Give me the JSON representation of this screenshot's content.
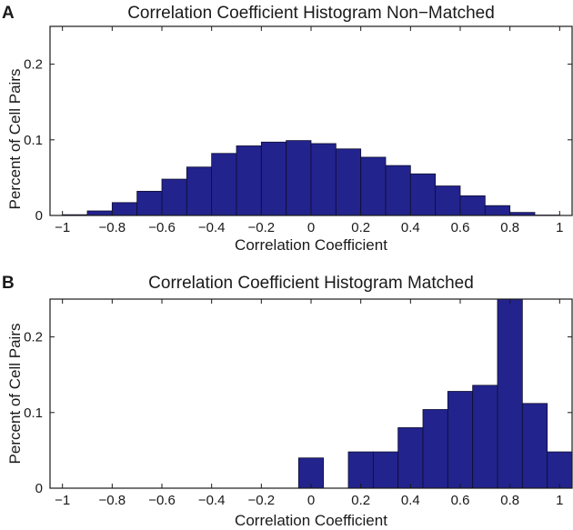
{
  "chart_data": [
    {
      "panel_label": "A",
      "type": "bar",
      "title": "Correlation Coefficient Histogram Non−Matched",
      "xlabel": "Correlation Coefficient",
      "ylabel": "Percent of Cell Pairs",
      "xlim": [
        -1.05,
        1.05
      ],
      "ylim": [
        0,
        0.25
      ],
      "xticks": [
        -1,
        -0.8,
        -0.6,
        -0.4,
        -0.2,
        0,
        0.2,
        0.4,
        0.6,
        0.8,
        1
      ],
      "xtick_labels": [
        "−1",
        "−0.8",
        "−0.6",
        "−0.4",
        "−0.2",
        "0",
        "0.2",
        "0.4",
        "0.6",
        "0.8",
        "1"
      ],
      "yticks": [
        0,
        0.1,
        0.2
      ],
      "ytick_labels": [
        "0",
        "0.1",
        "0.2"
      ],
      "bin_width": 0.1,
      "bin_centers": [
        -0.95,
        -0.85,
        -0.75,
        -0.65,
        -0.55,
        -0.45,
        -0.35,
        -0.25,
        -0.15,
        -0.05,
        0.05,
        0.15,
        0.25,
        0.35,
        0.45,
        0.55,
        0.65,
        0.75,
        0.85,
        0.95
      ],
      "values": [
        0.001,
        0.006,
        0.017,
        0.032,
        0.048,
        0.064,
        0.082,
        0.092,
        0.097,
        0.099,
        0.095,
        0.088,
        0.077,
        0.066,
        0.055,
        0.039,
        0.026,
        0.013,
        0.004,
        0.0005
      ]
    },
    {
      "panel_label": "B",
      "type": "bar",
      "title": "Correlation Coefficient Histogram Matched",
      "xlabel": "Correlation Coefficient",
      "ylabel": "Percent of Cell Pairs",
      "xlim": [
        -1.05,
        1.05
      ],
      "ylim": [
        0,
        0.25
      ],
      "xticks": [
        -1,
        -0.8,
        -0.6,
        -0.4,
        -0.2,
        0,
        0.2,
        0.4,
        0.6,
        0.8,
        1
      ],
      "xtick_labels": [
        "−1",
        "−0.8",
        "−0.6",
        "−0.4",
        "−0.2",
        "0",
        "0.2",
        "0.4",
        "0.6",
        "0.8",
        "1"
      ],
      "yticks": [
        0,
        0.1,
        0.2
      ],
      "ytick_labels": [
        "0",
        "0.1",
        "0.2"
      ],
      "bin_width": 0.1,
      "bin_centers": [
        0.0,
        0.2,
        0.3,
        0.4,
        0.5,
        0.6,
        0.7,
        0.8,
        0.9,
        1.0
      ],
      "values": [
        0.04,
        0.048,
        0.048,
        0.08,
        0.104,
        0.128,
        0.136,
        0.25,
        0.112,
        0.048
      ]
    }
  ]
}
